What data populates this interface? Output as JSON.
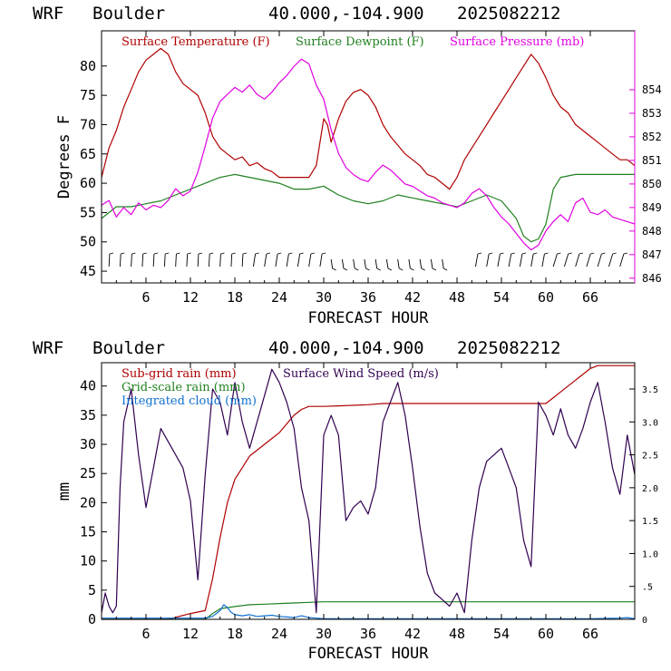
{
  "charts": [
    {
      "header": {
        "model": "WRF",
        "station": "Boulder",
        "coords": "40.000,-104.900",
        "run": "2025082212"
      },
      "legend": [
        {
          "label": "Surface Temperature (F)",
          "color": "#b00000"
        },
        {
          "label": "Surface Dewpoint (F)",
          "color": "#208020"
        },
        {
          "label": "Surface Pressure (mb)",
          "color": "#e000e0"
        }
      ],
      "ylabel": "Degrees F",
      "xlabel": "FORECAST HOUR",
      "x_ticks": [
        "6",
        "12",
        "18",
        "24",
        "30",
        "36",
        "42",
        "48",
        "54",
        "60",
        "66"
      ],
      "y_left_ticks": [
        "45",
        "50",
        "55",
        "60",
        "65",
        "70",
        "75",
        "80"
      ],
      "y_right_ticks": [
        "846",
        "847",
        "848",
        "849",
        "850",
        "851",
        "852",
        "853",
        "854"
      ]
    },
    {
      "header": {
        "model": "WRF",
        "station": "Boulder",
        "coords": "40.000,-104.900",
        "run": "2025082212"
      },
      "legend": [
        {
          "label": "Sub-grid rain (mm)",
          "color": "#b00000"
        },
        {
          "label": "Surface Wind Speed (m/s)",
          "color": "#300050"
        },
        {
          "label": "Grid-scale rain (mm)",
          "color": "#208020"
        },
        {
          "label": "Integrated cloud (mm)",
          "color": "#1070d0"
        }
      ],
      "ylabel": "mm",
      "xlabel": "FORECAST HOUR",
      "x_ticks": [
        "6",
        "12",
        "18",
        "24",
        "30",
        "36",
        "42",
        "48",
        "54",
        "60",
        "66"
      ],
      "y_left_ticks": [
        "0",
        "5",
        "10",
        "15",
        "20",
        "25",
        "30",
        "35",
        "40"
      ],
      "y_right_ticks": [
        "0",
        ".5",
        "1.0",
        "1.5",
        "2.0",
        "2.5",
        "3.0",
        "3.5"
      ]
    }
  ],
  "chart_data": [
    {
      "type": "line",
      "x_range": [
        0,
        72
      ],
      "y_left_range": [
        43,
        86
      ],
      "y_right_range": [
        845.8,
        856.5
      ],
      "series": [
        {
          "name": "Surface Temperature (F)",
          "axis": "left",
          "color": "#b00000",
          "x": [
            0,
            1,
            2,
            3,
            4,
            5,
            6,
            7,
            8,
            9,
            10,
            11,
            12,
            13,
            14,
            15,
            16,
            17,
            18,
            19,
            20,
            21,
            22,
            23,
            24,
            25,
            26,
            27,
            28,
            29,
            30,
            30.5,
            31,
            31.5,
            32,
            33,
            34,
            35,
            36,
            37,
            38,
            39,
            40,
            41,
            42,
            43,
            44,
            45,
            46,
            47,
            48,
            49,
            50,
            51,
            52,
            53,
            54,
            55,
            56,
            57,
            58,
            59,
            60,
            61,
            62,
            63,
            64,
            65,
            66,
            67,
            68,
            69,
            70,
            71,
            72
          ],
          "y": [
            61,
            66,
            69,
            73,
            76,
            79,
            81,
            82,
            83,
            82,
            79,
            77,
            76,
            75,
            72,
            68,
            66,
            65,
            64,
            64.5,
            63,
            63.5,
            62.5,
            62,
            61,
            61,
            61,
            61,
            61,
            63,
            71,
            70,
            67,
            69,
            71,
            74,
            75.5,
            76,
            75,
            73,
            70,
            68,
            66.5,
            65,
            64,
            63,
            61.5,
            61,
            60,
            59,
            61,
            64,
            66,
            68,
            70,
            72,
            74,
            76,
            78,
            80,
            82,
            80.5,
            78,
            75,
            73,
            72,
            70,
            69,
            68,
            67,
            66,
            65,
            64,
            64,
            63
          ]
        },
        {
          "name": "Surface Dewpoint (F)",
          "axis": "left",
          "color": "#208020",
          "x": [
            0,
            2,
            4,
            6,
            8,
            10,
            12,
            14,
            16,
            18,
            20,
            22,
            24,
            26,
            28,
            30,
            32,
            34,
            36,
            38,
            40,
            42,
            44,
            46,
            48,
            50,
            52,
            54,
            56,
            57,
            58,
            59,
            60,
            61,
            62,
            64,
            66,
            68,
            70,
            72
          ],
          "y": [
            54,
            56,
            56,
            56.5,
            57,
            58,
            59,
            60,
            61,
            61.5,
            61,
            60.5,
            60,
            59,
            59,
            59.5,
            58,
            57,
            56.5,
            57,
            58,
            57.5,
            57,
            56.5,
            56,
            57,
            58,
            57,
            54,
            51,
            50,
            50.5,
            53,
            59,
            61,
            61.5,
            61.5,
            61.5,
            61.5,
            61.5
          ]
        },
        {
          "name": "Surface Pressure (mb)",
          "axis": "right",
          "color": "#e000e0",
          "x": [
            0,
            1,
            2,
            3,
            4,
            5,
            6,
            7,
            8,
            9,
            10,
            11,
            12,
            13,
            14,
            15,
            16,
            17,
            18,
            19,
            20,
            21,
            22,
            23,
            24,
            25,
            26,
            27,
            28,
            29,
            30,
            31,
            32,
            33,
            34,
            35,
            36,
            37,
            38,
            39,
            40,
            41,
            42,
            43,
            44,
            45,
            46,
            47,
            48,
            49,
            50,
            51,
            52,
            53,
            54,
            55,
            56,
            57,
            58,
            59,
            60,
            61,
            62,
            63,
            64,
            65,
            66,
            67,
            68,
            69,
            70,
            71,
            72
          ],
          "y": [
            849.1,
            849.3,
            848.6,
            849.0,
            848.7,
            849.2,
            848.9,
            849.1,
            849.0,
            849.3,
            849.8,
            849.5,
            849.7,
            850.5,
            851.6,
            852.8,
            853.5,
            853.8,
            854.1,
            853.9,
            854.2,
            853.8,
            853.6,
            853.9,
            854.3,
            854.6,
            855.0,
            855.3,
            855.1,
            854.2,
            853.6,
            852.3,
            851.3,
            850.7,
            850.4,
            850.2,
            850.1,
            850.5,
            850.8,
            850.6,
            850.3,
            850.0,
            849.9,
            849.7,
            849.5,
            849.4,
            849.2,
            849.1,
            849.0,
            849.2,
            849.6,
            849.8,
            849.5,
            849.0,
            848.6,
            848.3,
            847.9,
            847.5,
            847.2,
            847.4,
            848.0,
            848.4,
            848.7,
            848.4,
            849.2,
            849.4,
            848.8,
            848.7,
            848.9,
            848.6,
            848.5,
            848.4,
            848.3
          ]
        }
      ]
    },
    {
      "type": "line",
      "x_range": [
        0,
        72
      ],
      "y_left_range": [
        0,
        44
      ],
      "y_right_range": [
        0,
        3.9
      ],
      "series": [
        {
          "name": "Sub-grid rain (mm)",
          "axis": "left",
          "color": "#b00000",
          "x": [
            0,
            9,
            12,
            14,
            15,
            16,
            17,
            18,
            19,
            20,
            21,
            22,
            23,
            24,
            25,
            26,
            27,
            28,
            29,
            30,
            32,
            34,
            36,
            38,
            40,
            42,
            44,
            46,
            48,
            50,
            52,
            54,
            56,
            58,
            60,
            61,
            62,
            63,
            64,
            65,
            66,
            67,
            68,
            70,
            72
          ],
          "y": [
            0,
            0,
            1,
            1.5,
            7,
            14,
            20,
            24,
            26,
            28,
            29,
            30,
            31,
            32,
            33.5,
            35,
            36,
            36.5,
            36.5,
            36.5,
            36.6,
            36.7,
            36.8,
            37,
            37,
            37,
            37,
            37,
            37,
            37,
            37,
            37,
            37,
            37,
            37,
            38,
            39,
            40,
            41,
            42,
            43,
            43.5,
            43.5,
            43.5,
            43.5
          ]
        },
        {
          "name": "Grid-scale rain (mm)",
          "axis": "left",
          "color": "#208020",
          "x": [
            0,
            14,
            15,
            16,
            17,
            18,
            20,
            22,
            24,
            26,
            28,
            30,
            36,
            42,
            48,
            54,
            60,
            66,
            72
          ],
          "y": [
            0,
            0,
            1,
            1.8,
            2,
            2.2,
            2.5,
            2.6,
            2.7,
            2.8,
            2.9,
            3.0,
            3.0,
            3.0,
            3.0,
            3.0,
            3.0,
            3.0,
            3.0
          ]
        },
        {
          "name": "Integrated cloud (mm)",
          "axis": "left",
          "color": "#1070d0",
          "x": [
            0,
            14,
            15,
            16,
            16.5,
            17,
            17.5,
            18,
            19,
            20,
            21,
            22,
            23,
            24,
            25,
            26,
            27,
            28,
            29,
            30,
            36,
            42,
            48,
            54,
            60,
            66,
            70,
            71,
            72
          ],
          "y": [
            0.2,
            0.2,
            0.5,
            1.5,
            2.5,
            2.0,
            1.2,
            0.8,
            0.6,
            0.8,
            0.5,
            0.6,
            0.7,
            0.5,
            0.4,
            0.3,
            0.6,
            0.3,
            0.2,
            0.1,
            0.1,
            0.1,
            0.1,
            0.1,
            0.1,
            0.1,
            0.2,
            0.3,
            0.1
          ]
        },
        {
          "name": "Surface Wind Speed (m/s)",
          "axis": "right",
          "color": "#300050",
          "x": [
            0,
            0.5,
            1,
            1.5,
            2,
            2.5,
            3,
            4,
            5,
            6,
            7,
            8,
            9,
            10,
            11,
            12,
            13,
            14,
            15,
            16,
            17,
            18,
            19,
            20,
            21,
            22,
            23,
            24,
            25,
            26,
            27,
            28,
            29,
            30,
            31,
            32,
            33,
            34,
            35,
            36,
            37,
            38,
            39,
            40,
            41,
            42,
            43,
            44,
            45,
            46,
            47,
            48,
            49,
            50,
            51,
            52,
            53,
            54,
            55,
            56,
            57,
            58,
            59,
            60,
            61,
            62,
            63,
            64,
            65,
            66,
            67,
            68,
            69,
            70,
            71,
            72
          ],
          "y": [
            0.1,
            0.4,
            0.2,
            0.1,
            0.2,
            2.0,
            3.0,
            3.5,
            2.5,
            1.7,
            2.3,
            2.9,
            2.7,
            2.5,
            2.3,
            1.8,
            0.6,
            2.2,
            3.5,
            3.3,
            2.8,
            3.6,
            3.0,
            2.6,
            3.0,
            3.4,
            3.8,
            3.6,
            3.3,
            2.9,
            2.0,
            1.5,
            0.1,
            2.8,
            3.1,
            2.8,
            1.5,
            1.7,
            1.8,
            1.6,
            2.0,
            3.0,
            3.3,
            3.6,
            3.1,
            2.3,
            1.4,
            0.7,
            0.4,
            0.3,
            0.2,
            0.4,
            0.1,
            1.2,
            2.0,
            2.4,
            2.5,
            2.6,
            2.3,
            2.0,
            1.2,
            0.8,
            3.3,
            3.1,
            2.8,
            3.2,
            2.8,
            2.6,
            2.9,
            3.3,
            3.6,
            3.0,
            2.3,
            1.9,
            2.8,
            2.2
          ]
        }
      ]
    }
  ]
}
